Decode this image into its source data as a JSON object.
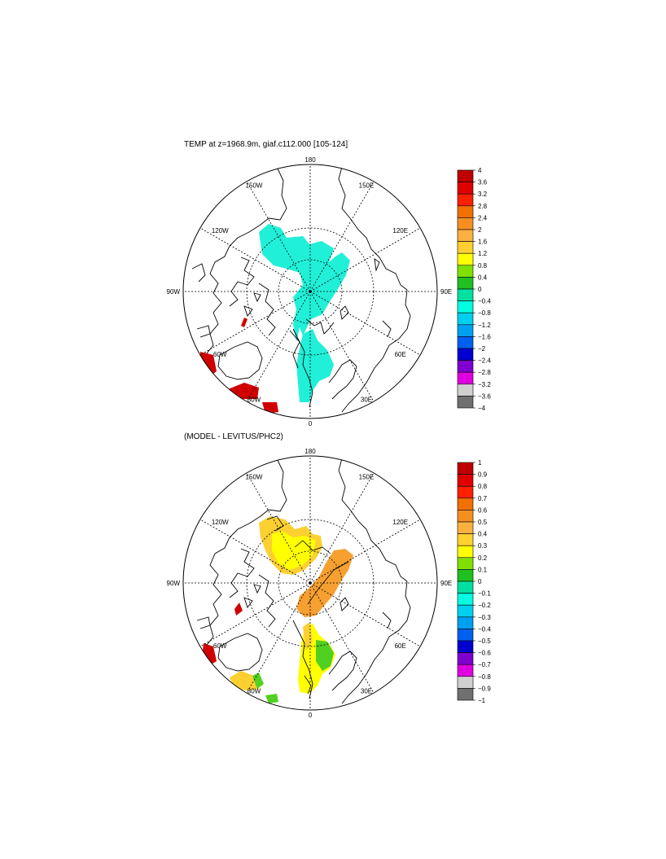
{
  "panels": [
    {
      "title": "TEMP at z=1968.9m, giaf.c112.000 [105-124]",
      "lon_labels": [
        "180",
        "150E",
        "120E",
        "90E",
        "60E",
        "30E",
        "0",
        "30W",
        "60W",
        "90W",
        "120W",
        "150W"
      ],
      "colorbar": {
        "labels": [
          "4",
          "3.6",
          "3.2",
          "2.8",
          "2.4",
          "2",
          "1.6",
          "1.2",
          "0.8",
          "0.4",
          "0",
          "−0.4",
          "−0.8",
          "−1.2",
          "−1.6",
          "−2",
          "−2.4",
          "−2.8",
          "−3.2",
          "−3.6",
          "−4"
        ]
      }
    },
    {
      "title": "(MODEL - LEVITUS/PHC2)",
      "lon_labels": [
        "180",
        "150E",
        "120E",
        "90E",
        "60E",
        "30E",
        "0",
        "30W",
        "60W",
        "90W",
        "120W",
        "150W"
      ],
      "colorbar": {
        "labels": [
          "1",
          "0.9",
          "0.8",
          "0.7",
          "0.6",
          "0.5",
          "0.4",
          "0.3",
          "0.2",
          "0.1",
          "0",
          "−0.1",
          "−0.2",
          "−0.3",
          "−0.4",
          "−0.5",
          "−0.6",
          "−0.7",
          "−0.8",
          "−0.9",
          "−1"
        ]
      }
    }
  ],
  "colorbar_colors": [
    "#c00000",
    "#e00000",
    "#ff2000",
    "#f07000",
    "#f59020",
    "#fbb040",
    "#ffd030",
    "#ffff00",
    "#80e000",
    "#20c020",
    "#00e0a0",
    "#00ffe0",
    "#00d0f0",
    "#00a0f0",
    "#0060f0",
    "#0000d0",
    "#8000d0",
    "#e000e0",
    "#d0d0d0",
    "#707070"
  ],
  "field_colors": {
    "cyan": "#20f0d8",
    "red": "#d00000",
    "yellow": "#ffff00",
    "gold": "#fbd030",
    "orange": "#f5a030",
    "green": "#50d020"
  }
}
